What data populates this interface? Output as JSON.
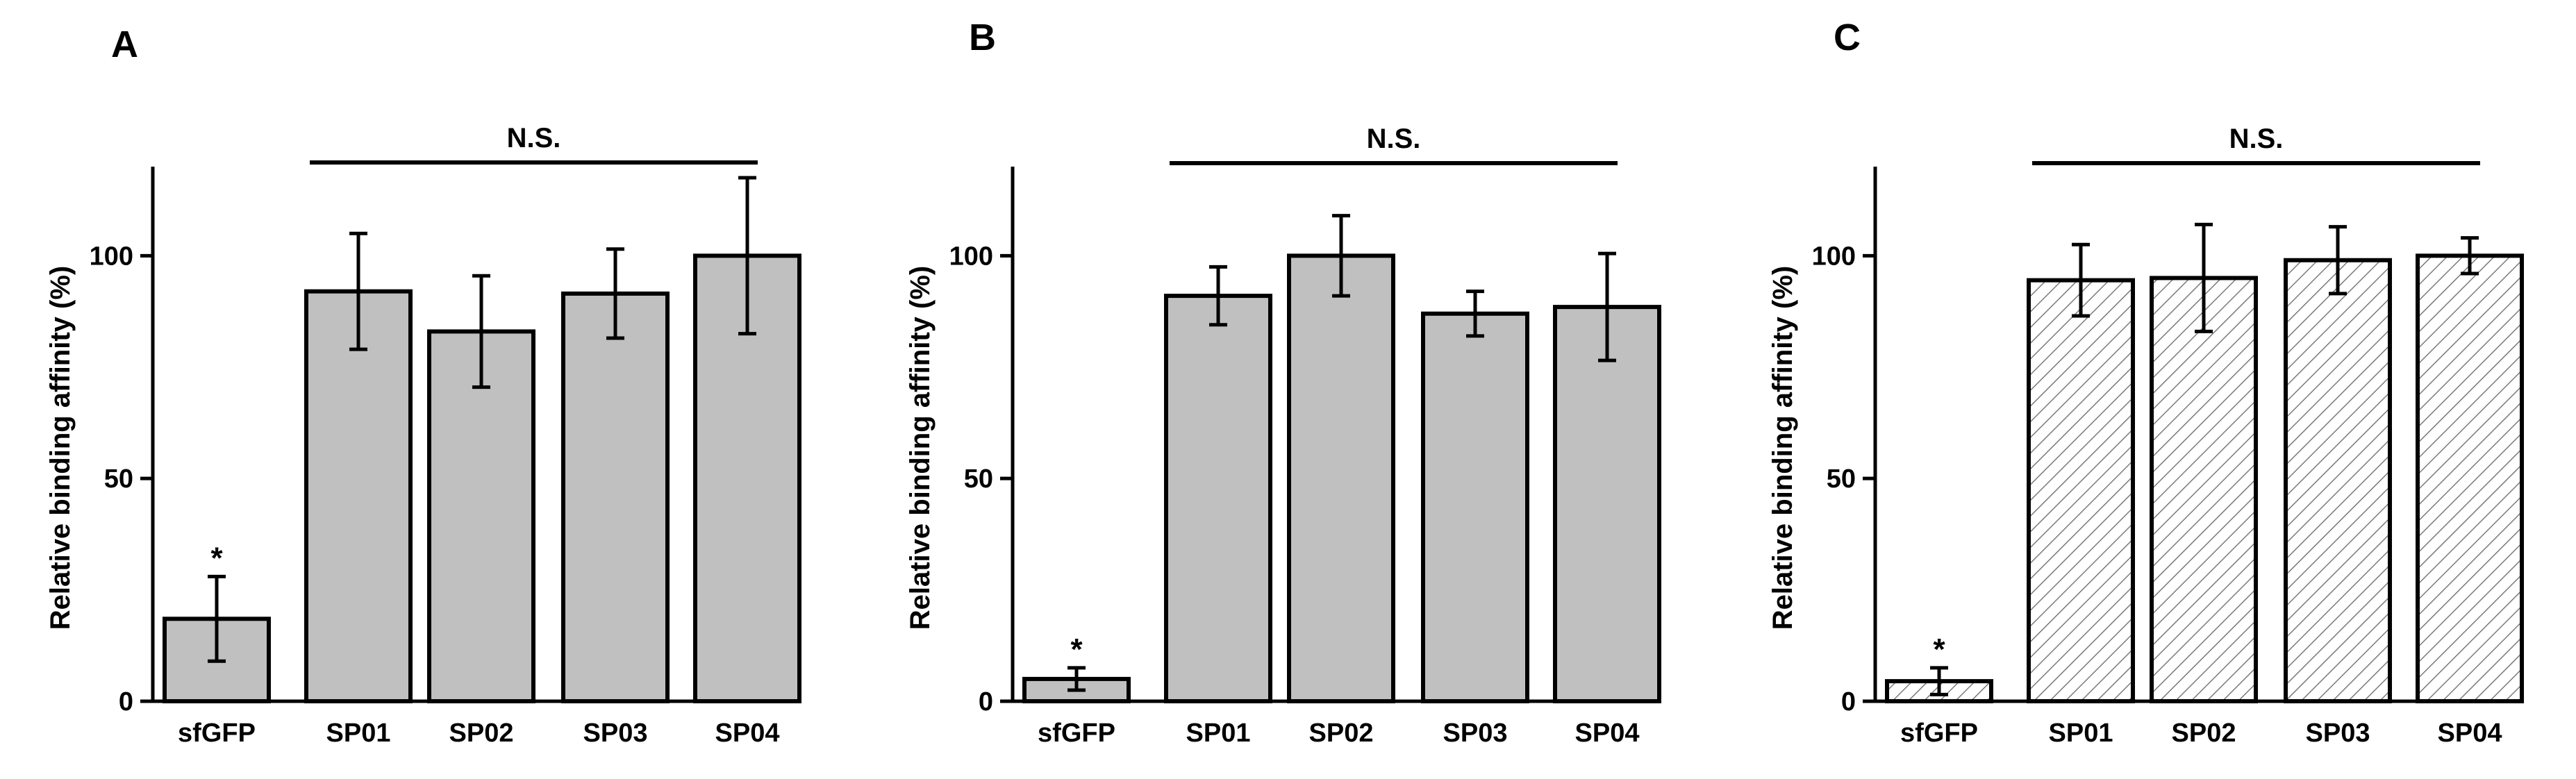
{
  "panels": [
    {
      "letter": "A",
      "chart_data": {
        "type": "bar",
        "categories": [
          "sfGFP",
          "SP01",
          "SP02",
          "SP03",
          "SP04"
        ],
        "values": [
          18.5,
          92,
          83,
          91.5,
          100
        ],
        "errors": [
          9.5,
          13,
          12.5,
          10,
          17.5
        ],
        "xlabel": "",
        "ylabel": "Relative binding affinity (%)",
        "yticks": [
          0,
          50,
          100
        ],
        "ylim": [
          0,
          120
        ],
        "fill": "gray",
        "star_label": "*",
        "star_on": "sfGFP",
        "significance_label": "N.S.",
        "significance_span": [
          "SP01",
          "SP04"
        ]
      }
    },
    {
      "letter": "B",
      "chart_data": {
        "type": "bar",
        "categories": [
          "sfGFP",
          "SP01",
          "SP02",
          "SP03",
          "SP04"
        ],
        "values": [
          5,
          91,
          100,
          87,
          88.5
        ],
        "errors": [
          2.5,
          6.5,
          9,
          5,
          12
        ],
        "xlabel": "",
        "ylabel": "Relative binding affinity (%)",
        "yticks": [
          0,
          50,
          100
        ],
        "ylim": [
          0,
          120
        ],
        "fill": "gray",
        "star_label": "*",
        "star_on": "sfGFP",
        "significance_label": "N.S.",
        "significance_span": [
          "SP01",
          "SP04"
        ]
      }
    },
    {
      "letter": "C",
      "chart_data": {
        "type": "bar",
        "categories": [
          "sfGFP",
          "SP01",
          "SP02",
          "SP03",
          "SP04"
        ],
        "values": [
          4.5,
          94.5,
          95,
          99,
          100
        ],
        "errors": [
          3,
          8,
          12,
          7.5,
          4
        ],
        "xlabel": "",
        "ylabel": "Relative binding affinity (%)",
        "yticks": [
          0,
          50,
          100
        ],
        "ylim": [
          0,
          120
        ],
        "fill": "hatched",
        "star_label": "*",
        "star_on": "sfGFP",
        "significance_label": "N.S.",
        "significance_span": [
          "SP01",
          "SP04"
        ]
      }
    }
  ],
  "colors": {
    "bar_fill": "#c0c0c0",
    "hatch_fill": "#ffffff",
    "hatch_line": "#7a7a7a",
    "stroke": "#000000"
  }
}
